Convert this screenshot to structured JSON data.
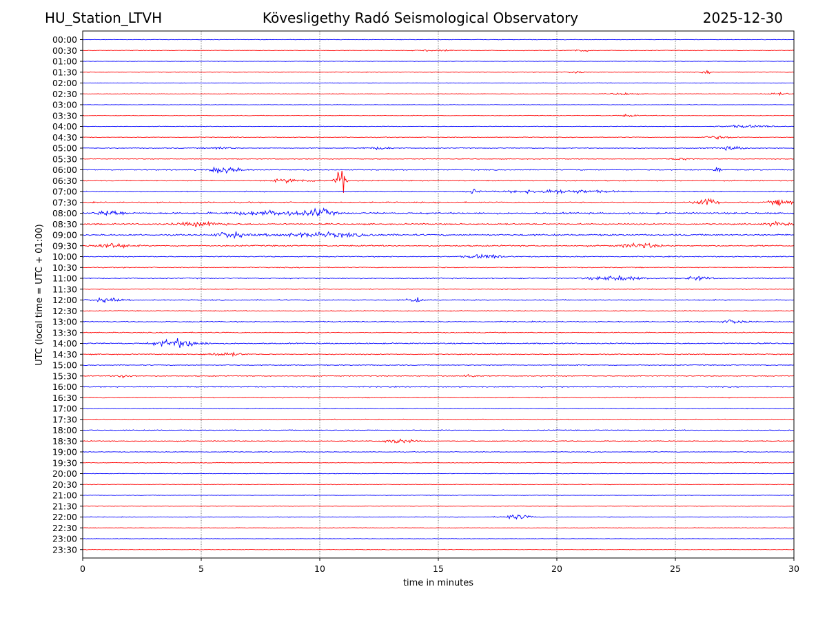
{
  "header": {
    "station": "HU_Station_LTVH",
    "observatory": "Kövesligethy Radó Seismological Observatory",
    "date": "2025-12-30"
  },
  "chart_data": {
    "type": "line",
    "title": "Kövesligethy Radó Seismological Observatory",
    "xlabel": "time in minutes",
    "ylabel": "UTC (local time = UTC + 01:00)",
    "xlim": [
      0,
      30
    ],
    "x_ticks": [
      "0",
      "5",
      "10",
      "15",
      "20",
      "25",
      "30"
    ],
    "x_tick_values": [
      0,
      5,
      10,
      15,
      20,
      25,
      30
    ],
    "grid": "vertical dotted at 5-minute intervals",
    "colors": {
      "even": "#0000ff",
      "odd": "#ff0000"
    },
    "row_labels": [
      "00:00",
      "00:30",
      "01:00",
      "01:30",
      "02:00",
      "02:30",
      "03:00",
      "03:30",
      "04:00",
      "04:30",
      "05:00",
      "05:30",
      "06:00",
      "06:30",
      "07:00",
      "07:30",
      "08:00",
      "08:30",
      "09:00",
      "09:30",
      "10:00",
      "10:30",
      "11:00",
      "11:30",
      "12:00",
      "12:30",
      "13:00",
      "13:30",
      "14:00",
      "14:30",
      "15:00",
      "15:30",
      "16:00",
      "16:30",
      "17:00",
      "17:30",
      "18:00",
      "18:30",
      "19:00",
      "19:30",
      "20:00",
      "20:30",
      "21:00",
      "21:30",
      "22:00",
      "22:30",
      "23:00",
      "23:30"
    ],
    "row_noise_level": [
      0.3,
      0.35,
      0.3,
      0.35,
      0.3,
      0.35,
      0.3,
      0.35,
      0.35,
      0.4,
      0.45,
      0.4,
      0.6,
      0.6,
      0.6,
      0.7,
      1.0,
      0.8,
      0.9,
      0.8,
      0.6,
      0.55,
      0.6,
      0.5,
      0.6,
      0.5,
      0.6,
      0.55,
      0.7,
      0.55,
      0.5,
      0.55,
      0.6,
      0.5,
      0.45,
      0.4,
      0.5,
      0.5,
      0.4,
      0.4,
      0.35,
      0.35,
      0.35,
      0.35,
      0.35,
      0.35,
      0.3,
      0.35
    ],
    "events": [
      {
        "row": 1,
        "minute": 15.0,
        "amp": 1.5,
        "dur": 1.2
      },
      {
        "row": 1,
        "minute": 21.0,
        "amp": 1.2,
        "dur": 1.0
      },
      {
        "row": 3,
        "minute": 20.8,
        "amp": 1.5,
        "dur": 0.6
      },
      {
        "row": 3,
        "minute": 26.3,
        "amp": 2.0,
        "dur": 0.3
      },
      {
        "row": 5,
        "minute": 22.8,
        "amp": 1.4,
        "dur": 1.0
      },
      {
        "row": 5,
        "minute": 29.3,
        "amp": 1.3,
        "dur": 1.0
      },
      {
        "row": 7,
        "minute": 23.0,
        "amp": 1.3,
        "dur": 0.8
      },
      {
        "row": 8,
        "minute": 28.0,
        "amp": 1.5,
        "dur": 2.0
      },
      {
        "row": 9,
        "minute": 26.8,
        "amp": 1.6,
        "dur": 1.2
      },
      {
        "row": 10,
        "minute": 5.8,
        "amp": 1.5,
        "dur": 1.0
      },
      {
        "row": 10,
        "minute": 12.5,
        "amp": 1.3,
        "dur": 1.2
      },
      {
        "row": 10,
        "minute": 27.3,
        "amp": 2.0,
        "dur": 1.2
      },
      {
        "row": 11,
        "minute": 25.3,
        "amp": 1.2,
        "dur": 1.0
      },
      {
        "row": 12,
        "minute": 6.0,
        "amp": 4.0,
        "dur": 1.3
      },
      {
        "row": 12,
        "minute": 26.8,
        "amp": 5.0,
        "dur": 0.25
      },
      {
        "row": 13,
        "minute": 8.8,
        "amp": 2.0,
        "dur": 1.6
      },
      {
        "row": 13,
        "minute": 10.8,
        "amp": 10.0,
        "dur": 0.5
      },
      {
        "row": 13,
        "minute": 11.0,
        "amp": 28.0,
        "dur": 0.15
      },
      {
        "row": 14,
        "minute": 16.5,
        "amp": 3.0,
        "dur": 0.4
      },
      {
        "row": 14,
        "minute": 20.0,
        "amp": 2.2,
        "dur": 4.0
      },
      {
        "row": 15,
        "minute": 26.3,
        "amp": 5.0,
        "dur": 0.8
      },
      {
        "row": 15,
        "minute": 29.5,
        "amp": 3.5,
        "dur": 1.0
      },
      {
        "row": 16,
        "minute": 1.2,
        "amp": 3.5,
        "dur": 1.0
      },
      {
        "row": 16,
        "minute": 10.0,
        "amp": 4.5,
        "dur": 1.0
      },
      {
        "row": 16,
        "minute": 8.0,
        "amp": 2.5,
        "dur": 3.0
      },
      {
        "row": 17,
        "minute": 5.0,
        "amp": 2.5,
        "dur": 2.0
      },
      {
        "row": 17,
        "minute": 29.3,
        "amp": 2.2,
        "dur": 1.0
      },
      {
        "row": 18,
        "minute": 6.2,
        "amp": 4.0,
        "dur": 1.0
      },
      {
        "row": 18,
        "minute": 10.0,
        "amp": 2.5,
        "dur": 4.0
      },
      {
        "row": 19,
        "minute": 1.2,
        "amp": 3.0,
        "dur": 1.5
      },
      {
        "row": 19,
        "minute": 23.5,
        "amp": 3.0,
        "dur": 1.5
      },
      {
        "row": 20,
        "minute": 17.0,
        "amp": 2.5,
        "dur": 1.5
      },
      {
        "row": 22,
        "minute": 22.5,
        "amp": 2.8,
        "dur": 2.0
      },
      {
        "row": 22,
        "minute": 26.0,
        "amp": 2.2,
        "dur": 1.0
      },
      {
        "row": 24,
        "minute": 1.0,
        "amp": 2.2,
        "dur": 1.2
      },
      {
        "row": 24,
        "minute": 14.0,
        "amp": 3.0,
        "dur": 0.6
      },
      {
        "row": 26,
        "minute": 27.5,
        "amp": 2.2,
        "dur": 1.0
      },
      {
        "row": 28,
        "minute": 4.0,
        "amp": 5.0,
        "dur": 1.8
      },
      {
        "row": 29,
        "minute": 6.0,
        "amp": 2.0,
        "dur": 1.5
      },
      {
        "row": 31,
        "minute": 1.8,
        "amp": 2.0,
        "dur": 0.8
      },
      {
        "row": 31,
        "minute": 16.3,
        "amp": 2.0,
        "dur": 0.6
      },
      {
        "row": 37,
        "minute": 13.3,
        "amp": 2.8,
        "dur": 1.2
      },
      {
        "row": 44,
        "minute": 18.3,
        "amp": 2.8,
        "dur": 1.2
      }
    ]
  }
}
